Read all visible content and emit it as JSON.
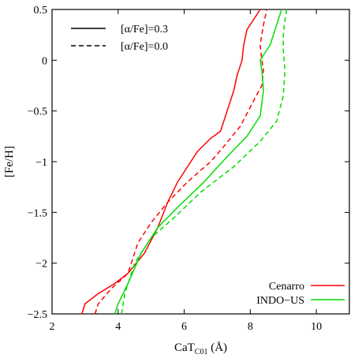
{
  "chart_data": {
    "type": "line",
    "xlabel_main": "CaT",
    "xlabel_sub": "C01",
    "xlabel_unit": " (Å)",
    "ylabel": "[Fe/H]",
    "xlim": [
      2,
      11
    ],
    "ylim": [
      -2.5,
      0.5
    ],
    "xticks": [
      2,
      4,
      6,
      8,
      10
    ],
    "yticks": [
      0.5,
      0,
      -0.5,
      -1,
      -1.5,
      -2,
      -2.5
    ],
    "ytick_labels": [
      "0.5",
      "0",
      "−0.5",
      "−1",
      "−1.5",
      "−2",
      "−2.5"
    ],
    "line_style_legend": [
      {
        "label": "[α/Fe]=0.3",
        "dash": "solid"
      },
      {
        "label": "[α/Fe]=0.0",
        "dash": "dashed"
      }
    ],
    "color_legend": [
      {
        "label": "Cenarro",
        "color": "#ff0000"
      },
      {
        "label": "INDO−US",
        "color": "#00dd00"
      }
    ],
    "series": [
      {
        "library": "Cenarro",
        "alpha": "0.3",
        "color": "#ff0000",
        "dash": "solid",
        "x": [
          2.9,
          3.0,
          3.4,
          3.9,
          4.3,
          4.8,
          5.2,
          5.5,
          5.8,
          6.0,
          6.4,
          6.8,
          7.1,
          7.3,
          7.5,
          7.6,
          7.7,
          7.75,
          7.8,
          7.9,
          8.1,
          8.3
        ],
        "y": [
          -2.5,
          -2.4,
          -2.3,
          -2.2,
          -2.1,
          -1.9,
          -1.65,
          -1.4,
          -1.2,
          -1.1,
          -0.9,
          -0.77,
          -0.7,
          -0.5,
          -0.3,
          -0.15,
          -0.05,
          0.0,
          0.15,
          0.3,
          0.4,
          0.5
        ]
      },
      {
        "library": "Cenarro",
        "alpha": "0.0",
        "color": "#ff0000",
        "dash": "dashed",
        "x": [
          3.3,
          3.4,
          3.8,
          4.3,
          4.6,
          5.0,
          5.5,
          6.1,
          6.8,
          7.2,
          7.7,
          8.1,
          8.35,
          8.4,
          8.35,
          8.3,
          8.4,
          8.5
        ],
        "y": [
          -2.5,
          -2.4,
          -2.25,
          -2.1,
          -1.8,
          -1.6,
          -1.4,
          -1.2,
          -1.0,
          -0.85,
          -0.65,
          -0.4,
          -0.25,
          -0.1,
          0.0,
          0.15,
          0.35,
          0.5
        ]
      },
      {
        "library": "INDO−US",
        "alpha": "0.3",
        "color": "#00dd00",
        "dash": "solid",
        "x": [
          3.9,
          4.0,
          4.3,
          4.7,
          5.2,
          5.8,
          6.6,
          7.3,
          7.9,
          8.3,
          8.4,
          8.35,
          8.3,
          8.4,
          8.6,
          8.8,
          8.95
        ],
        "y": [
          -2.5,
          -2.4,
          -2.2,
          -1.9,
          -1.65,
          -1.45,
          -1.2,
          -0.95,
          -0.75,
          -0.55,
          -0.3,
          -0.1,
          0.0,
          0.05,
          0.15,
          0.35,
          0.5
        ]
      },
      {
        "library": "INDO−US",
        "alpha": "0.0",
        "color": "#00dd00",
        "dash": "dashed",
        "x": [
          4.1,
          4.2,
          4.5,
          5.0,
          5.7,
          6.5,
          7.5,
          8.3,
          8.8,
          9.0,
          9.05,
          9.0,
          9.0,
          9.05,
          9.1
        ],
        "y": [
          -2.5,
          -2.3,
          -2.0,
          -1.75,
          -1.55,
          -1.3,
          -1.05,
          -0.8,
          -0.6,
          -0.35,
          -0.1,
          0.1,
          0.25,
          0.4,
          0.5
        ]
      }
    ]
  }
}
